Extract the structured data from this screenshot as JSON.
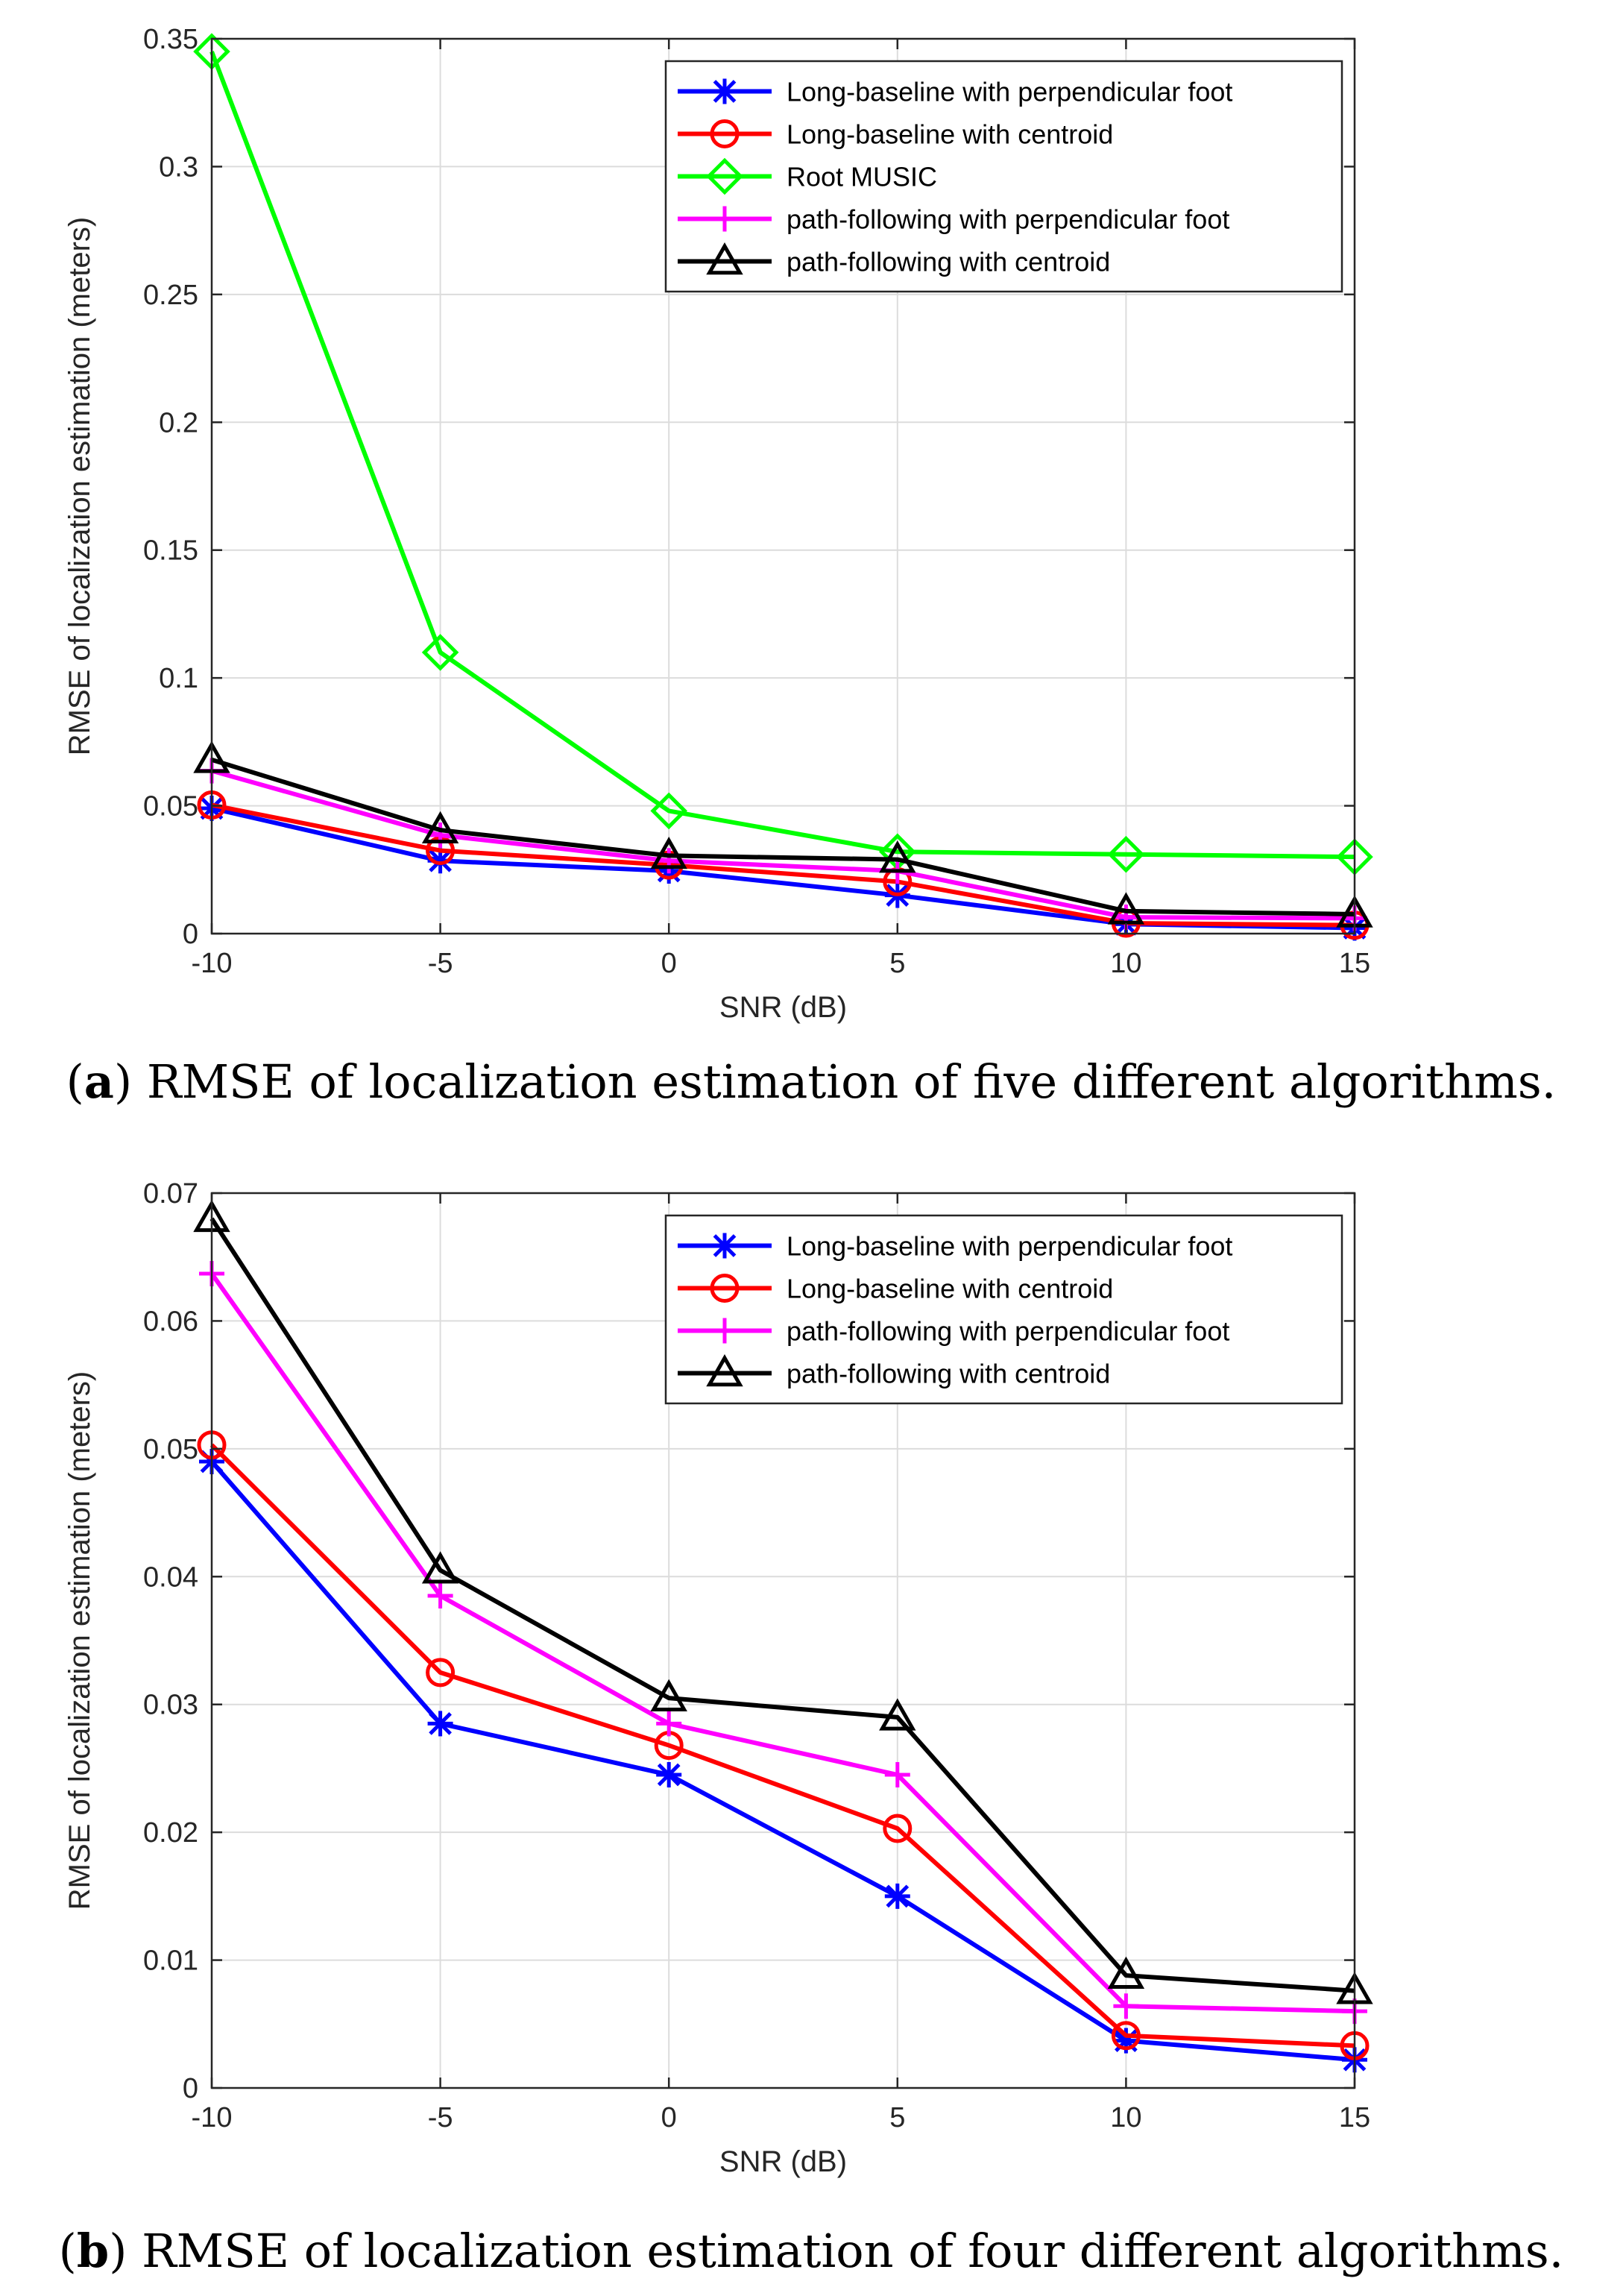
{
  "figure": {
    "caption_a": {
      "label": "a",
      "text": "RMSE of localization estimation of five different algorithms."
    },
    "caption_b": {
      "label": "b",
      "text": "RMSE of localization estimation of four different algorithms."
    }
  },
  "colors": {
    "blue": "#0000ff",
    "red": "#ff0000",
    "green": "#00ff00",
    "magenta": "#ff00ff",
    "black": "#000000",
    "grid": "#dcdcdc",
    "axis": "#262626"
  },
  "chart_data": [
    {
      "type": "line",
      "title": "",
      "xlabel": "SNR (dB)",
      "ylabel": "RMSE of localization estimation (meters)",
      "x": [
        -10,
        -5,
        0,
        5,
        10,
        15
      ],
      "xlim": [
        -10,
        15
      ],
      "ylim": [
        0,
        0.35
      ],
      "xticks": [
        "-10",
        "-5",
        "0",
        "5",
        "10",
        "15"
      ],
      "yticks": [
        "0",
        "0.05",
        "0.1",
        "0.15",
        "0.2",
        "0.25",
        "0.3",
        "0.35"
      ],
      "grid": true,
      "legend_position": "top-right",
      "series": [
        {
          "name": "Long-baseline with perpendicular foot",
          "color": "#0000ff",
          "marker": "asterisk",
          "values": [
            0.049,
            0.0285,
            0.0245,
            0.015,
            0.0037,
            0.0022
          ]
        },
        {
          "name": "Long-baseline with centroid",
          "color": "#ff0000",
          "marker": "circle",
          "values": [
            0.0503,
            0.0325,
            0.0268,
            0.0203,
            0.0041,
            0.0033
          ]
        },
        {
          "name": "Root MUSIC",
          "color": "#00ff00",
          "marker": "diamond",
          "values": [
            0.345,
            0.11,
            0.048,
            0.032,
            0.031,
            0.03
          ]
        },
        {
          "name": "path-following with perpendicular foot",
          "color": "#ff00ff",
          "marker": "plus",
          "values": [
            0.0637,
            0.0385,
            0.0285,
            0.0245,
            0.0064,
            0.006
          ]
        },
        {
          "name": "path-following with centroid",
          "color": "#000000",
          "marker": "triangle",
          "values": [
            0.068,
            0.0405,
            0.0305,
            0.029,
            0.0088,
            0.0076
          ]
        }
      ]
    },
    {
      "type": "line",
      "title": "",
      "xlabel": "SNR (dB)",
      "ylabel": "RMSE of localization estimation (meters)",
      "x": [
        -10,
        -5,
        0,
        5,
        10,
        15
      ],
      "xlim": [
        -10,
        15
      ],
      "ylim": [
        0,
        0.07
      ],
      "xticks": [
        "-10",
        "-5",
        "0",
        "5",
        "10",
        "15"
      ],
      "yticks": [
        "0",
        "0.01",
        "0.02",
        "0.03",
        "0.04",
        "0.05",
        "0.06",
        "0.07"
      ],
      "grid": true,
      "legend_position": "top-right",
      "series": [
        {
          "name": "Long-baseline with perpendicular foot",
          "color": "#0000ff",
          "marker": "asterisk",
          "values": [
            0.049,
            0.0285,
            0.0245,
            0.015,
            0.0037,
            0.0022
          ]
        },
        {
          "name": "Long-baseline with centroid",
          "color": "#ff0000",
          "marker": "circle",
          "values": [
            0.0503,
            0.0325,
            0.0268,
            0.0203,
            0.0041,
            0.0033
          ]
        },
        {
          "name": "path-following with perpendicular foot",
          "color": "#ff00ff",
          "marker": "plus",
          "values": [
            0.0637,
            0.0385,
            0.0285,
            0.0245,
            0.0064,
            0.006
          ]
        },
        {
          "name": "path-following with centroid",
          "color": "#000000",
          "marker": "triangle",
          "values": [
            0.068,
            0.0405,
            0.0305,
            0.029,
            0.0088,
            0.0076
          ]
        }
      ]
    }
  ]
}
